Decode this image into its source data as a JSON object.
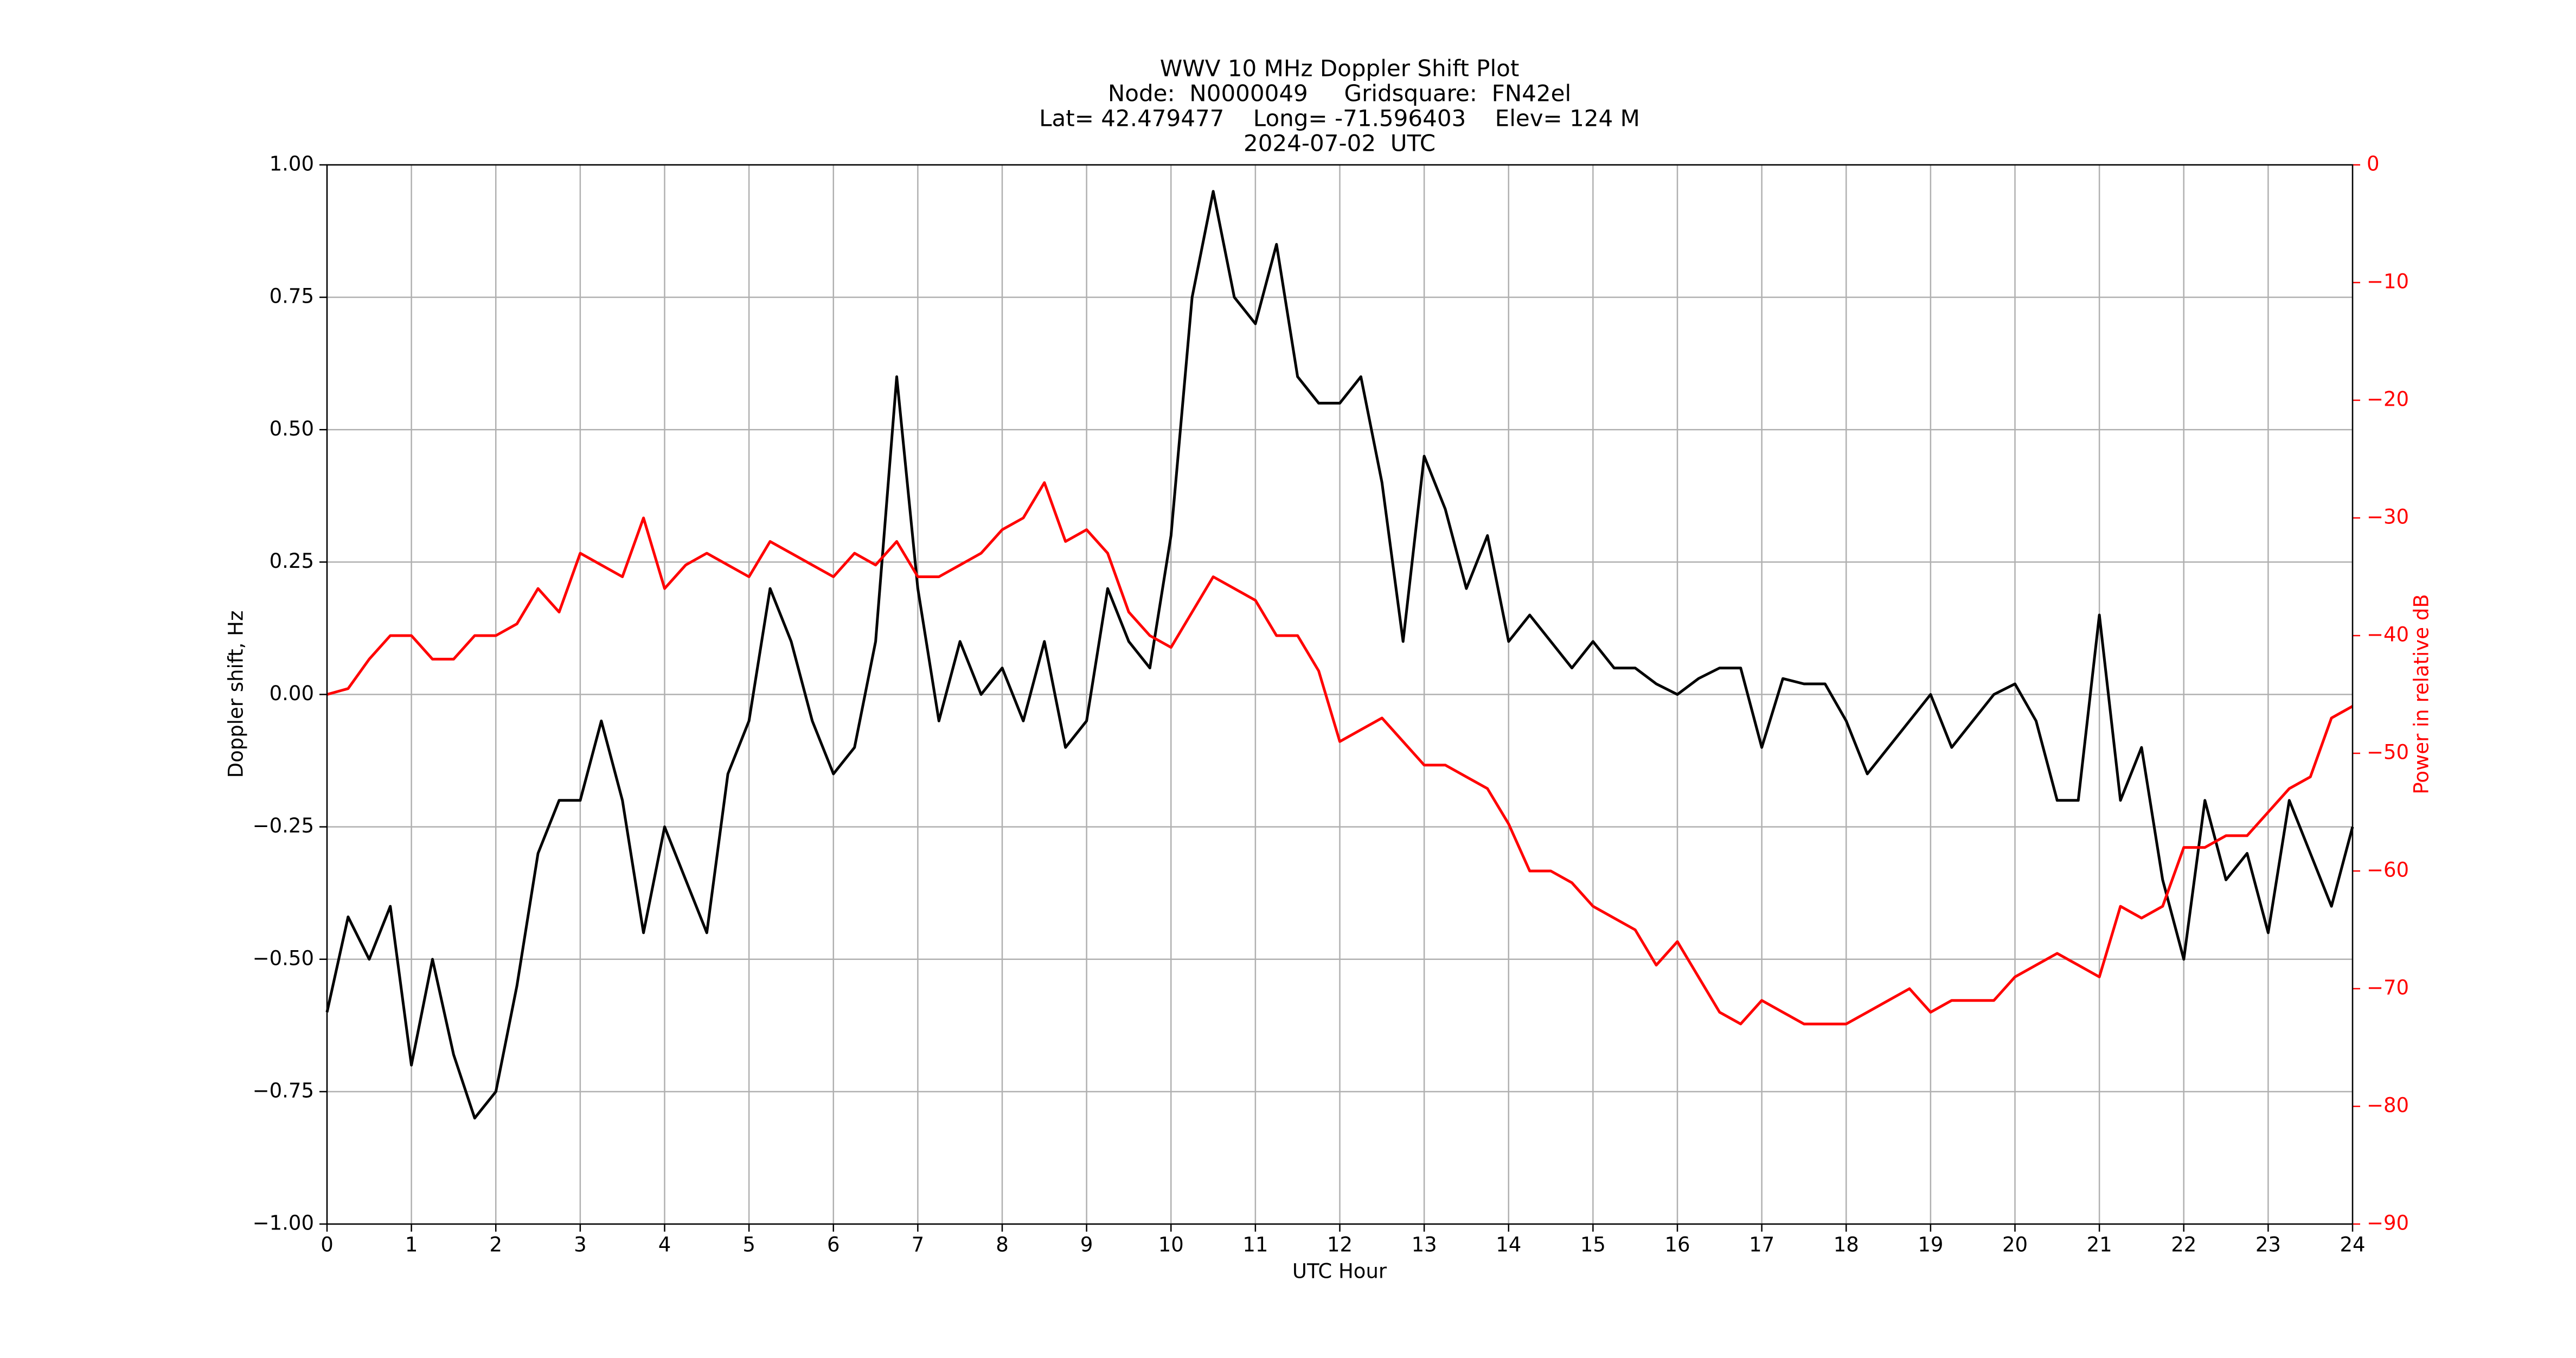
{
  "chart_data": {
    "type": "line",
    "title": "WWV 10 MHz Doppler Shift Plot",
    "subtitle": [
      "Node:  N0000049     Gridsquare:  FN42el",
      "Lat= 42.479477    Long= -71.596403    Elev= 124 M",
      "2024-07-02  UTC"
    ],
    "xlabel": "UTC Hour",
    "ylabel": "Doppler shift, Hz",
    "y2label": "Power in relative dB",
    "grid": true,
    "xlim": [
      0,
      24
    ],
    "xticks": [
      0,
      1,
      2,
      3,
      4,
      5,
      6,
      7,
      8,
      9,
      10,
      11,
      12,
      13,
      14,
      15,
      16,
      17,
      18,
      19,
      20,
      21,
      22,
      23,
      24
    ],
    "ylim": [
      -1,
      1
    ],
    "yticks": [
      {
        "value": -1,
        "label": "−1.00"
      },
      {
        "value": -0.75,
        "label": "−0.75"
      },
      {
        "value": -0.5,
        "label": "−0.50"
      },
      {
        "value": -0.25,
        "label": "−0.25"
      },
      {
        "value": 0,
        "label": "0.00"
      },
      {
        "value": 0.25,
        "label": "0.25"
      },
      {
        "value": 0.5,
        "label": "0.50"
      },
      {
        "value": 0.75,
        "label": "0.75"
      },
      {
        "value": 1,
        "label": "1.00"
      }
    ],
    "y2lim": [
      -90,
      0
    ],
    "y2ticks": [
      {
        "value": -90,
        "label": "−90"
      },
      {
        "value": -80,
        "label": "−80"
      },
      {
        "value": -70,
        "label": "−70"
      },
      {
        "value": -60,
        "label": "−60"
      },
      {
        "value": -50,
        "label": "−50"
      },
      {
        "value": -40,
        "label": "−40"
      },
      {
        "value": -30,
        "label": "−30"
      },
      {
        "value": -20,
        "label": "−20"
      },
      {
        "value": -10,
        "label": "−10"
      },
      0
    ],
    "y2color": "#ff0000",
    "x": [
      0,
      0.25,
      0.5,
      0.75,
      1,
      1.25,
      1.5,
      1.75,
      2,
      2.25,
      2.5,
      2.75,
      3,
      3.25,
      3.5,
      3.75,
      4,
      4.25,
      4.5,
      4.75,
      5,
      5.25,
      5.5,
      5.75,
      6,
      6.25,
      6.5,
      6.75,
      7,
      7.25,
      7.5,
      7.75,
      8,
      8.25,
      8.5,
      8.75,
      9,
      9.25,
      9.5,
      9.75,
      10,
      10.25,
      10.5,
      10.75,
      11,
      11.25,
      11.5,
      11.75,
      12,
      12.25,
      12.5,
      12.75,
      13,
      13.25,
      13.5,
      13.75,
      14,
      14.25,
      14.5,
      14.75,
      15,
      15.25,
      15.5,
      15.75,
      16,
      16.25,
      16.5,
      16.75,
      17,
      17.25,
      17.5,
      17.75,
      18,
      18.25,
      18.5,
      18.75,
      19,
      19.25,
      19.5,
      19.75,
      20,
      20.25,
      20.5,
      20.75,
      21,
      21.25,
      21.5,
      21.75,
      22,
      22.25,
      22.5,
      22.75,
      23,
      23.25,
      23.5,
      23.75,
      24
    ],
    "series": [
      {
        "color": "#000000",
        "values": [
          -0.6,
          -0.42,
          -0.5,
          -0.4,
          -0.7,
          -0.5,
          -0.68,
          -0.8,
          -0.75,
          -0.55,
          -0.3,
          -0.2,
          -0.2,
          -0.05,
          -0.2,
          -0.45,
          -0.25,
          -0.35,
          -0.45,
          -0.15,
          -0.05,
          0.2,
          0.1,
          -0.05,
          -0.15,
          -0.1,
          0.1,
          0.6,
          0.2,
          -0.05,
          0.1,
          0,
          0.05,
          -0.05,
          0.1,
          -0.1,
          -0.05,
          0.2,
          0.1,
          0.05,
          0.3,
          0.75,
          0.95,
          0.75,
          0.7,
          0.85,
          0.6,
          0.55,
          0.55,
          0.6,
          0.4,
          0.1,
          0.45,
          0.35,
          0.2,
          0.3,
          0.1,
          0.15,
          0.1,
          0.05,
          0.1,
          0.05,
          0.05,
          0.02,
          0,
          0.03,
          0.05,
          0.05,
          -0.1,
          0.03,
          0.02,
          0.02,
          -0.05,
          -0.15,
          -0.1,
          -0.05,
          0,
          -0.1,
          -0.05,
          0,
          0.02,
          -0.05,
          -0.2,
          -0.2,
          0.15,
          -0.2,
          -0.1,
          -0.35,
          -0.5,
          -0.2,
          -0.35,
          -0.3,
          -0.45,
          -0.2,
          -0.3,
          -0.4,
          -0.25
        ]
      },
      {
        "color": "#ff0000",
        "axis": "y2",
        "values": [
          -45,
          -44.5,
          -42,
          -40,
          -40,
          -42,
          -42,
          -40,
          -40,
          -39,
          -36,
          -38,
          -33,
          -34,
          -35,
          -30,
          -36,
          -34,
          -33,
          -34,
          -35,
          -32,
          -33,
          -34,
          -35,
          -33,
          -34,
          -32,
          -35,
          -35,
          -34,
          -33,
          -31,
          -30,
          -27,
          -32,
          -31,
          -33,
          -38,
          -40,
          -41,
          -38,
          -35,
          -36,
          -37,
          -40,
          -40,
          -43,
          -49,
          -48,
          -47,
          -49,
          -51,
          -51,
          -52,
          -53,
          -56,
          -60,
          -60,
          -61,
          -63,
          -64,
          -65,
          -68,
          -66,
          -69,
          -72,
          -73,
          -71,
          -72,
          -73,
          -73,
          -73,
          -72,
          -71,
          -70,
          -72,
          -71,
          -71,
          -71,
          -69,
          -68,
          -67,
          -68,
          -69,
          -63,
          -64,
          -63,
          -58,
          -58,
          -57,
          -57,
          -55,
          -53,
          -52,
          -47,
          -46
        ]
      }
    ]
  }
}
